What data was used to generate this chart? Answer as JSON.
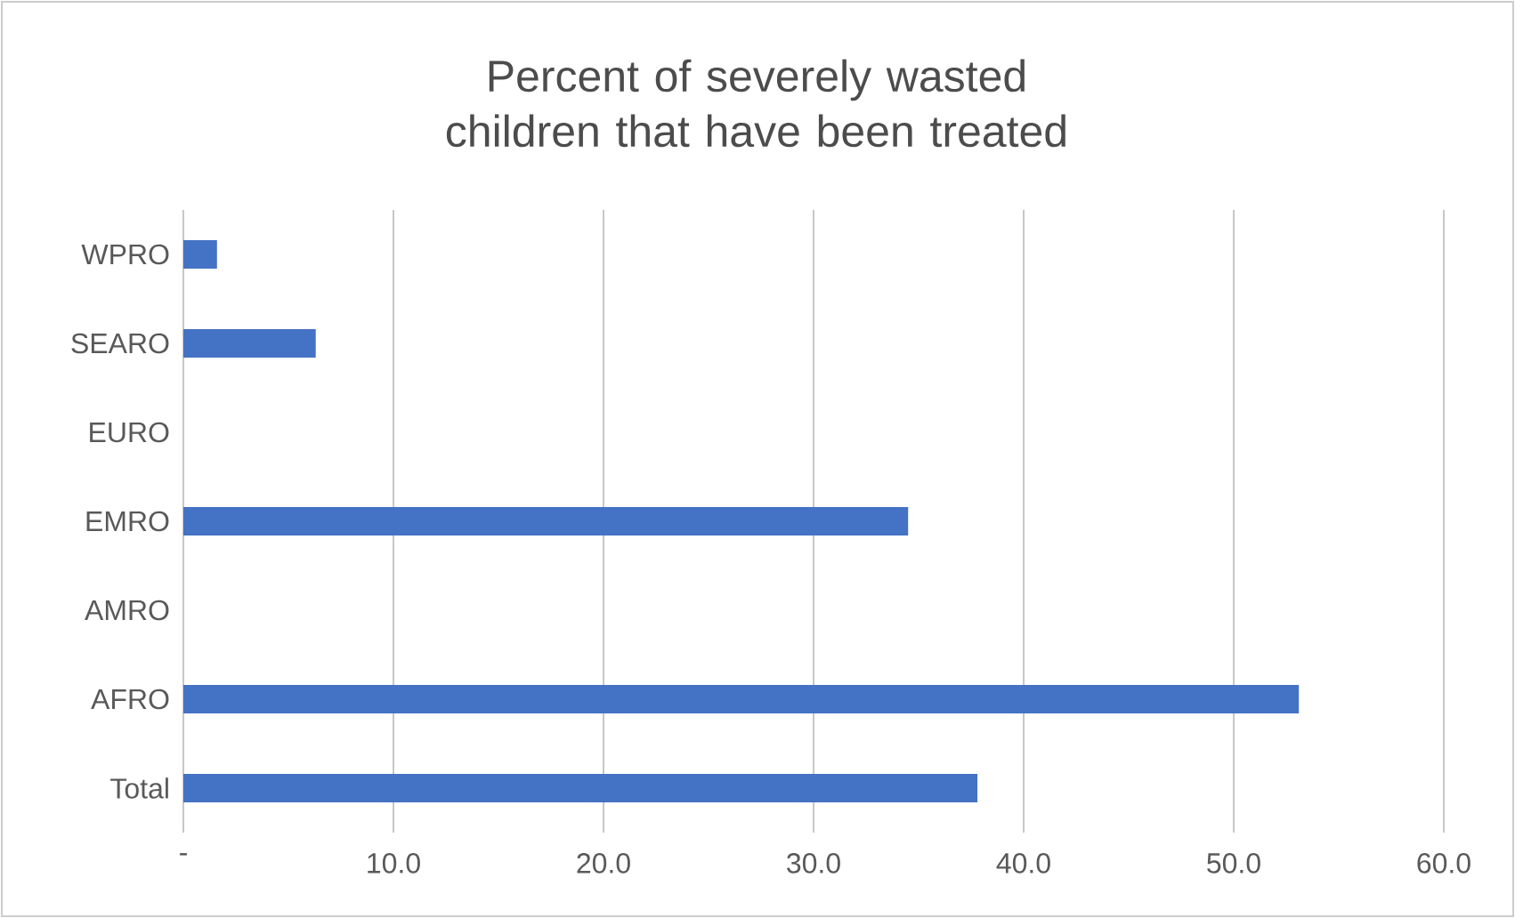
{
  "chart_data": {
    "type": "bar",
    "orientation": "horizontal",
    "title": "Percent of severely wasted children that have been treated",
    "categories": [
      "WPRO",
      "SEARO",
      "EURO",
      "EMRO",
      "AMRO",
      "AFRO",
      "Total"
    ],
    "values": [
      1.6,
      6.3,
      null,
      34.5,
      null,
      53.1,
      37.8
    ],
    "color": "#4472c4",
    "xlim": [
      0,
      60
    ],
    "xticks": [
      {
        "value": 0,
        "label": "-"
      },
      {
        "value": 10,
        "label": "10.0"
      },
      {
        "value": 20,
        "label": "20.0"
      },
      {
        "value": 30,
        "label": "30.0"
      },
      {
        "value": 40,
        "label": "40.0"
      },
      {
        "value": 50,
        "label": "50.0"
      },
      {
        "value": 60,
        "label": "60.0"
      }
    ],
    "grid": "x"
  }
}
